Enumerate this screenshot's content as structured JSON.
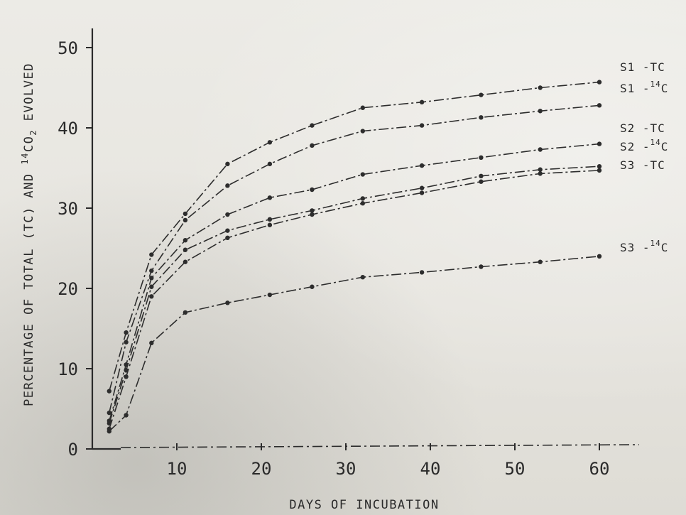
{
  "chart_data": {
    "type": "line",
    "xlabel": "DAYS OF INCUBATION",
    "ylabel": {
      "prefix": "PERCENTAGE OF TOTAL (TC) AND ",
      "sup1": "14",
      "mid": "CO",
      "sub": "2",
      "suffix": " EVOLVED"
    },
    "xlim": [
      0,
      65
    ],
    "ylim": [
      0,
      50
    ],
    "x_ticks": [
      10,
      20,
      30,
      40,
      50,
      60
    ],
    "y_ticks": [
      0,
      10,
      20,
      30,
      40,
      50
    ],
    "grid": false,
    "legend_placement": "right end of lines",
    "series": [
      {
        "name": "S1 -TC",
        "label_main": "S1 -TC",
        "label_sup": "",
        "label_suffix": "",
        "x": [
          2,
          4,
          7,
          11,
          16,
          21,
          26,
          32,
          39,
          46,
          53,
          60
        ],
        "y": [
          7.2,
          14.5,
          24.2,
          29.3,
          35.5,
          38.2,
          40.3,
          42.5,
          43.2,
          44.1,
          45.0,
          45.7
        ]
      },
      {
        "name": "S1 -14C",
        "label_main": "S1 -",
        "label_sup": "14",
        "label_suffix": "C",
        "x": [
          2,
          4,
          7,
          11,
          16,
          21,
          26,
          32,
          39,
          46,
          53,
          60
        ],
        "y": [
          4.5,
          13.3,
          22.2,
          28.5,
          32.8,
          35.5,
          37.8,
          39.6,
          40.3,
          41.3,
          42.1,
          42.8
        ]
      },
      {
        "name": "S2 -TC",
        "label_main": "S2 -TC",
        "label_sup": "",
        "label_suffix": "",
        "x": [
          2,
          4,
          7,
          11,
          16,
          21,
          26,
          32,
          39,
          46,
          53,
          60
        ],
        "y": [
          3.5,
          10.5,
          21.3,
          26.0,
          29.2,
          31.3,
          32.3,
          34.2,
          35.3,
          36.3,
          37.3,
          38.0
        ]
      },
      {
        "name": "S2 -14C",
        "label_main": "S2 -",
        "label_sup": "14",
        "label_suffix": "C",
        "x": [
          2,
          4,
          7,
          11,
          16,
          21,
          26,
          32,
          39,
          46,
          53,
          60
        ],
        "y": [
          3.2,
          9.8,
          20.2,
          24.8,
          27.2,
          28.6,
          29.7,
          31.2,
          32.5,
          34.0,
          34.8,
          35.2
        ]
      },
      {
        "name": "S3 -TC",
        "label_main": "S3 -TC",
        "label_sup": "",
        "label_suffix": "",
        "x": [
          2,
          4,
          7,
          11,
          16,
          21,
          26,
          32,
          39,
          46,
          53,
          60
        ],
        "y": [
          2.5,
          9.0,
          19.0,
          23.3,
          26.3,
          27.9,
          29.2,
          30.6,
          31.9,
          33.3,
          34.3,
          34.7
        ]
      },
      {
        "name": "S3 -14C",
        "label_main": "S3 -",
        "label_sup": "14",
        "label_suffix": "C",
        "x": [
          2,
          4,
          7,
          11,
          16,
          21,
          26,
          32,
          39,
          46,
          53,
          60
        ],
        "y": [
          2.2,
          4.2,
          13.2,
          17.0,
          18.2,
          19.2,
          20.2,
          21.4,
          22.0,
          22.7,
          23.3,
          24.0
        ]
      }
    ]
  }
}
